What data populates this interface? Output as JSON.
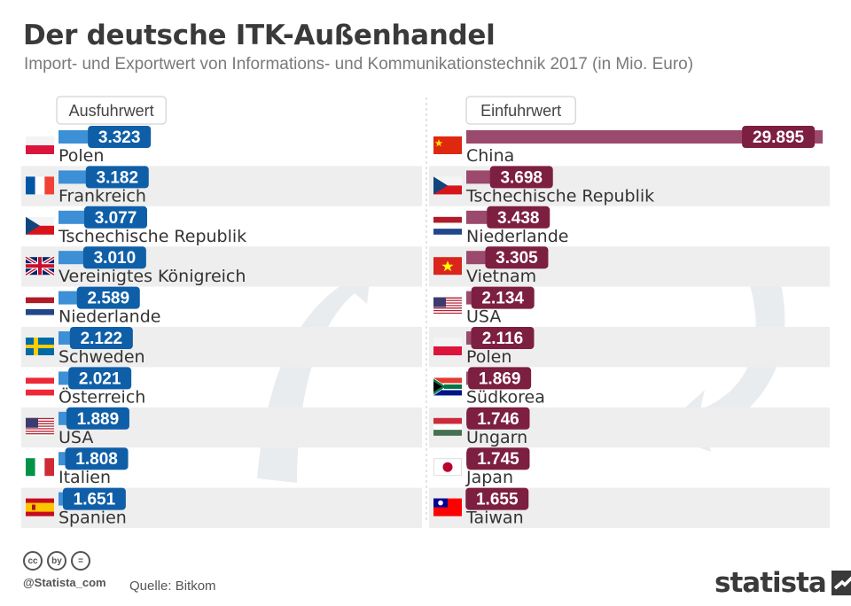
{
  "title": "Der deutsche ITK-Außenhandel",
  "subtitle": "Import- und Exportwert von Informations- und Kommunikationstechnik 2017 (in Mio. Euro)",
  "colors": {
    "export_bar": "#3d8fd6",
    "export_label": "#0f5fa8",
    "import_bar": "#9b4a6e",
    "import_label": "#7d1f40",
    "stripe": "#eeeeee",
    "arrow": "#e9ecef"
  },
  "chart_data": [
    {
      "type": "bar",
      "title": "Ausfuhrwert",
      "categories": [
        "Polen",
        "Frankreich",
        "Tschechische Republik",
        "Vereinigtes Königreich",
        "Niederlande",
        "Schweden",
        "Österreich",
        "USA",
        "Italien",
        "Spanien"
      ],
      "values": [
        3323,
        3182,
        3077,
        3010,
        2589,
        2122,
        2021,
        1889,
        1808,
        1651
      ],
      "value_labels": [
        "3.323",
        "3.182",
        "3.077",
        "3.010",
        "2.589",
        "2.122",
        "2.021",
        "1.889",
        "1.808",
        "1.651"
      ],
      "flags": [
        "pl",
        "fr",
        "cz",
        "gb",
        "nl",
        "se",
        "at",
        "us",
        "it",
        "es"
      ],
      "unit": "Mio. Euro"
    },
    {
      "type": "bar",
      "title": "Einfuhrwert",
      "categories": [
        "China",
        "Tschechische Republik",
        "Niederlande",
        "Vietnam",
        "USA",
        "Polen",
        "Südkorea",
        "Ungarn",
        "Japan",
        "Taiwan"
      ],
      "values": [
        29895,
        3698,
        3438,
        3305,
        2134,
        2116,
        1869,
        1746,
        1745,
        1655
      ],
      "value_labels": [
        "29.895",
        "3.698",
        "3.438",
        "3.305",
        "2.134",
        "2.116",
        "1.869",
        "1.746",
        "1.745",
        "1.655"
      ],
      "flags": [
        "cn",
        "cz",
        "nl",
        "vn",
        "us",
        "pl",
        "za",
        "hu",
        "jp",
        "tw"
      ],
      "unit": "Mio. Euro"
    }
  ],
  "footer": {
    "handle": "@Statista_com",
    "source": "Quelle: Bitkom",
    "brand": "statista",
    "cc_icons": [
      "cc",
      "by",
      "="
    ]
  }
}
